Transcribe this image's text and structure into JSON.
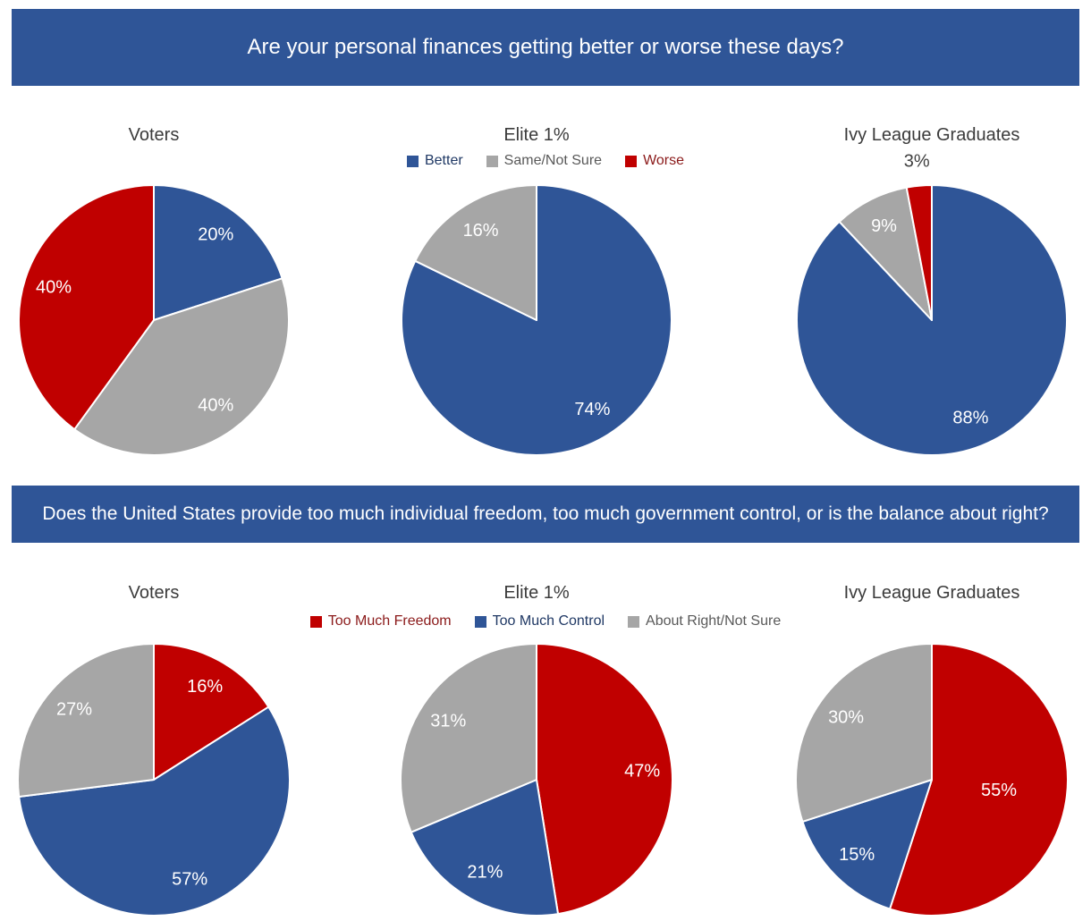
{
  "page": {
    "background": "#FFFFFF"
  },
  "chart_data": [
    {
      "type": "pie",
      "question": "Are your personal finances getting better or worse these days?",
      "band_color": "#2F5597",
      "band_text_color": "#FFFFFF",
      "legend_position": "top-center",
      "legend": [
        {
          "label": "Better",
          "color": "#2F5597",
          "text_color": "#1F3864"
        },
        {
          "label": "Same/Not Sure",
          "color": "#A6A6A6",
          "text_color": "#595959"
        },
        {
          "label": "Worse",
          "color": "#C00000",
          "text_color": "#8B1A1A"
        }
      ],
      "charts": [
        {
          "title": "Voters",
          "slices": [
            {
              "label": "Better",
              "value": 20,
              "display": "20%",
              "color": "#2F5597"
            },
            {
              "label": "Same/Not Sure",
              "value": 40,
              "display": "40%",
              "color": "#A6A6A6"
            },
            {
              "label": "Worse",
              "value": 40,
              "display": "40%",
              "color": "#C00000"
            }
          ]
        },
        {
          "title": "Elite 1%",
          "slices": [
            {
              "label": "Better",
              "value": 74,
              "display": "74%",
              "color": "#2F5597"
            },
            {
              "label": "Same/Not Sure",
              "value": 16,
              "display": "16%",
              "color": "#A6A6A6"
            }
          ]
        },
        {
          "title": "Ivy League Graduates",
          "slices": [
            {
              "label": "Better",
              "value": 88,
              "display": "88%",
              "color": "#2F5597"
            },
            {
              "label": "Same/Not Sure",
              "value": 9,
              "display": "9%",
              "color": "#A6A6A6"
            },
            {
              "label": "Worse",
              "value": 3,
              "display": "3%",
              "color": "#C00000",
              "outside": true
            }
          ]
        }
      ]
    },
    {
      "type": "pie",
      "question": "Does the United States provide too much individual freedom, too much government control, or is the balance about right?",
      "band_color": "#2F5597",
      "band_text_color": "#FFFFFF",
      "legend_position": "top-center",
      "legend": [
        {
          "label": "Too Much Freedom",
          "color": "#C00000",
          "text_color": "#8B1A1A"
        },
        {
          "label": "Too Much Control",
          "color": "#2F5597",
          "text_color": "#1F3864"
        },
        {
          "label": "About Right/Not Sure",
          "color": "#A6A6A6",
          "text_color": "#595959"
        }
      ],
      "charts": [
        {
          "title": "Voters",
          "slices": [
            {
              "label": "Too Much Freedom",
              "value": 16,
              "display": "16%",
              "color": "#C00000"
            },
            {
              "label": "Too Much Control",
              "value": 57,
              "display": "57%",
              "color": "#2F5597"
            },
            {
              "label": "About Right/Not Sure",
              "value": 27,
              "display": "27%",
              "color": "#A6A6A6"
            }
          ]
        },
        {
          "title": "Elite 1%",
          "slices": [
            {
              "label": "Too Much Freedom",
              "value": 47,
              "display": "47%",
              "color": "#C00000"
            },
            {
              "label": "Too Much Control",
              "value": 21,
              "display": "21%",
              "color": "#2F5597"
            },
            {
              "label": "About Right/Not Sure",
              "value": 31,
              "display": "31%",
              "color": "#A6A6A6"
            }
          ]
        },
        {
          "title": "Ivy League Graduates",
          "slices": [
            {
              "label": "Too Much Freedom",
              "value": 55,
              "display": "55%",
              "color": "#C00000",
              "label_r": 0.5
            },
            {
              "label": "Too Much Control",
              "value": 15,
              "display": "15%",
              "color": "#2F5597"
            },
            {
              "label": "About Right/Not Sure",
              "value": 30,
              "display": "30%",
              "color": "#A6A6A6"
            }
          ]
        }
      ]
    }
  ]
}
